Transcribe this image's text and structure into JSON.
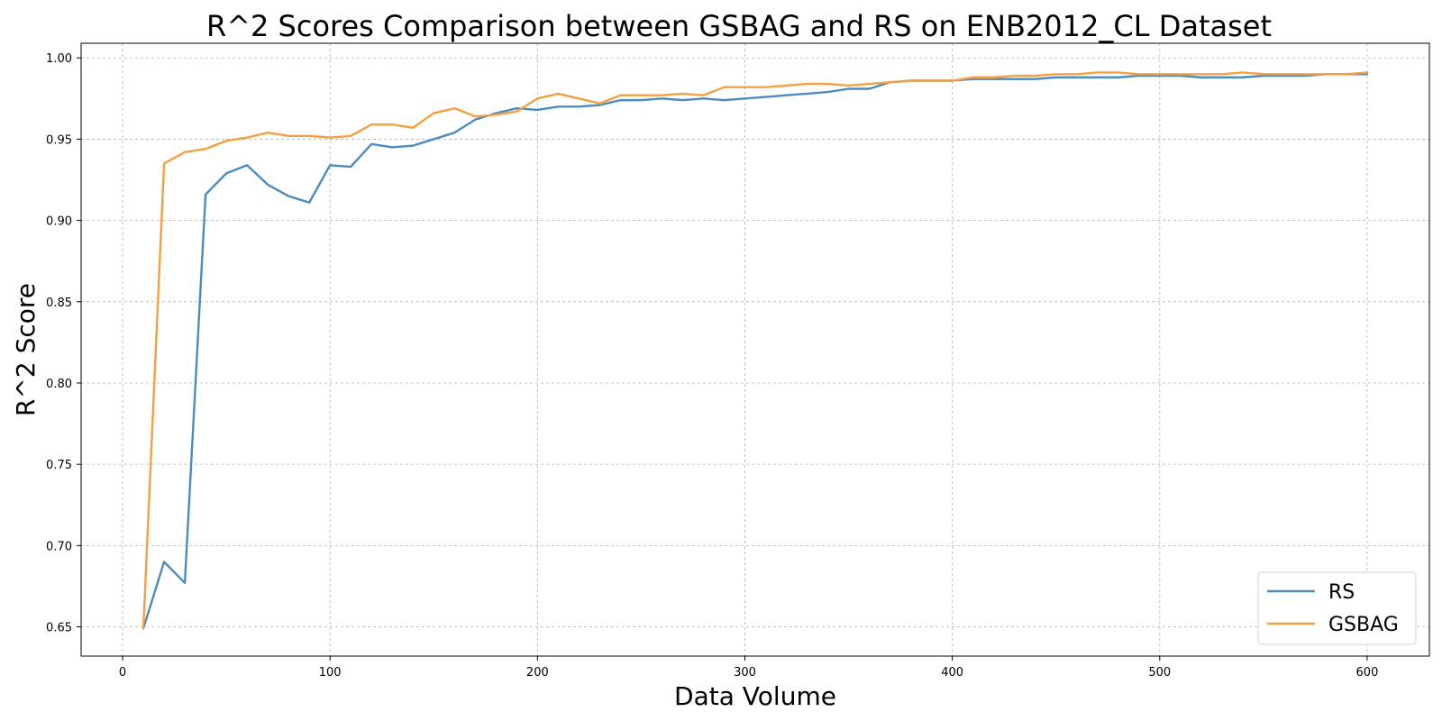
{
  "chart_data": {
    "type": "line",
    "title": "R^2 Scores Comparison between GSBAG and RS on ENB2012_CL Dataset",
    "xlabel": "Data Volume",
    "ylabel": "R^2 Score",
    "xlim": [
      -20,
      630
    ],
    "ylim": [
      0.632,
      1.009
    ],
    "xticks": [
      0,
      100,
      200,
      300,
      400,
      500,
      600
    ],
    "yticks": [
      0.65,
      0.7,
      0.75,
      0.8,
      0.85,
      0.9,
      0.95,
      1.0
    ],
    "ytick_labels": [
      "0.65",
      "0.70",
      "0.75",
      "0.80",
      "0.85",
      "0.90",
      "0.95",
      "1.00"
    ],
    "grid": true,
    "legend_position": "lower-right",
    "x": [
      10,
      20,
      30,
      40,
      50,
      60,
      70,
      80,
      90,
      100,
      110,
      120,
      130,
      140,
      150,
      160,
      170,
      180,
      190,
      200,
      210,
      220,
      230,
      240,
      250,
      260,
      270,
      280,
      290,
      300,
      310,
      320,
      330,
      340,
      350,
      360,
      370,
      380,
      390,
      400,
      410,
      420,
      430,
      440,
      450,
      460,
      470,
      480,
      490,
      500,
      510,
      520,
      530,
      540,
      550,
      560,
      570,
      580,
      590,
      600
    ],
    "series": [
      {
        "name": "RS",
        "color": "#4b8bbe",
        "values": [
          0.649,
          0.69,
          0.677,
          0.916,
          0.929,
          0.934,
          0.922,
          0.915,
          0.911,
          0.934,
          0.933,
          0.947,
          0.945,
          0.946,
          0.95,
          0.954,
          0.962,
          0.966,
          0.969,
          0.968,
          0.97,
          0.97,
          0.971,
          0.974,
          0.974,
          0.975,
          0.974,
          0.975,
          0.974,
          0.975,
          0.976,
          0.977,
          0.978,
          0.979,
          0.981,
          0.981,
          0.985,
          0.986,
          0.986,
          0.986,
          0.987,
          0.987,
          0.987,
          0.987,
          0.988,
          0.988,
          0.988,
          0.988,
          0.989,
          0.989,
          0.989,
          0.988,
          0.988,
          0.988,
          0.989,
          0.989,
          0.989,
          0.99,
          0.99,
          0.99
        ]
      },
      {
        "name": "GSBAG",
        "color": "#f5a040",
        "values": [
          0.649,
          0.935,
          0.942,
          0.944,
          0.949,
          0.951,
          0.954,
          0.952,
          0.952,
          0.951,
          0.952,
          0.959,
          0.959,
          0.957,
          0.966,
          0.969,
          0.964,
          0.965,
          0.967,
          0.975,
          0.978,
          0.975,
          0.972,
          0.977,
          0.977,
          0.977,
          0.978,
          0.977,
          0.982,
          0.982,
          0.982,
          0.983,
          0.984,
          0.984,
          0.983,
          0.984,
          0.985,
          0.986,
          0.986,
          0.986,
          0.988,
          0.988,
          0.989,
          0.989,
          0.99,
          0.99,
          0.991,
          0.991,
          0.99,
          0.99,
          0.99,
          0.99,
          0.99,
          0.991,
          0.99,
          0.99,
          0.99,
          0.99,
          0.99,
          0.991
        ]
      }
    ]
  }
}
